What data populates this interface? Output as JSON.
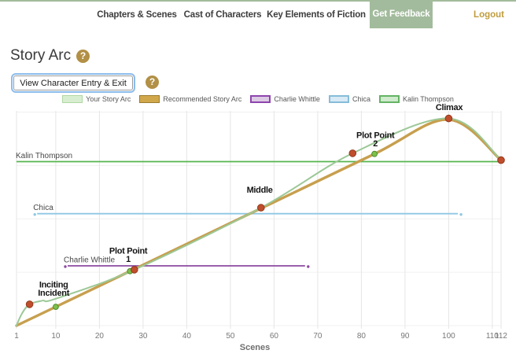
{
  "nav": {
    "items": [
      {
        "label": "Chapters & Scenes"
      },
      {
        "label": "Cast of Characters"
      },
      {
        "label": "Key Elements of Fiction"
      }
    ],
    "feedback_label": "Get Feedback",
    "logout_label": "Logout"
  },
  "page": {
    "title": "Story Arc",
    "help_glyph": "?",
    "view_button_label": "View Character Entry & Exit"
  },
  "colors": {
    "accent_green": "#a2bb9c",
    "logout_gold": "#bf9c3d",
    "help_gold": "#b29045",
    "grid": "#e6e6e6",
    "tick_text": "#777777",
    "annotation_text": "#141414"
  },
  "chart_data": {
    "type": "line",
    "title": "",
    "xlabel": "Scenes",
    "ylabel": "",
    "x_ticks": [
      1,
      10,
      20,
      30,
      40,
      50,
      60,
      70,
      80,
      90,
      100,
      110,
      112
    ],
    "x_range": [
      1,
      112
    ],
    "y_range": [
      0,
      100
    ],
    "grid": true,
    "legend_position": "top",
    "legend": [
      {
        "name": "Your Story Arc",
        "fill": "#d8eed0",
        "border": "#aed7a2",
        "bw": 1
      },
      {
        "name": "Recommended Story Arc",
        "fill": "#d0a74b",
        "border": "#9c7b2f",
        "bw": 1
      },
      {
        "name": "Charlie Whittle",
        "fill": "#dccae5",
        "border": "#8e44ad",
        "bw": 2
      },
      {
        "name": "Chica",
        "fill": "#d7eaf6",
        "border": "#86bcd9",
        "bw": 2
      },
      {
        "name": "Kalin Thompson",
        "fill": "#cfeacd",
        "border": "#64b364",
        "bw": 2
      }
    ],
    "series": [
      {
        "name": "Recommended Story Arc",
        "color": "#c79f4e",
        "width": 3.4,
        "points": [
          [
            1,
            0
          ],
          [
            10,
            8.8
          ],
          [
            27,
            25.5
          ],
          [
            57,
            54.9
          ],
          [
            83,
            80.4
          ],
          [
            100,
            96.5
          ],
          [
            112,
            77.5
          ]
        ],
        "markers": {
          "fill": "#7dc14b",
          "stroke": "#4c8c2b",
          "r": 3.4,
          "points": [
            [
              10,
              8.8
            ],
            [
              27,
              25.5
            ],
            [
              83,
              80.4
            ]
          ]
        }
      },
      {
        "name": "Your Story Arc",
        "color": "#9cc897",
        "width": 2,
        "points": [
          [
            1,
            0
          ],
          [
            2.2,
            5.5
          ],
          [
            4,
            10
          ],
          [
            7,
            11.7
          ],
          [
            10,
            12.6
          ],
          [
            28,
            26.2
          ],
          [
            57,
            55.2
          ],
          [
            78,
            80.7
          ],
          [
            100,
            97
          ],
          [
            112,
            77.5
          ]
        ],
        "markers": {
          "fill": "#c04e2c",
          "stroke": "#93371c",
          "r": 4.3,
          "points": [
            [
              4,
              10
            ],
            [
              28,
              26.2
            ],
            [
              57,
              55.2
            ],
            [
              78,
              80.7
            ],
            [
              100,
              97
            ],
            [
              112,
              77.5
            ]
          ]
        }
      }
    ],
    "character_lines": [
      {
        "name": "Kalin Thompson",
        "color": "#55b44e",
        "value": 76.8,
        "from": 1,
        "to": 112,
        "end_dots": false
      },
      {
        "name": "Chica",
        "color": "#8fc8e2",
        "value": 52.4,
        "from": 5,
        "to": 103,
        "end_dots": true
      },
      {
        "name": "Charlie Whittle",
        "color": "#8c4aa0",
        "value": 28,
        "from": 12,
        "to": 68,
        "end_dots": true
      }
    ],
    "annotations": [
      {
        "lines": [
          "Inciting",
          "Incident"
        ],
        "scene": 9.5,
        "value": 14
      },
      {
        "lines": [
          "Plot Point",
          "1"
        ],
        "scene": 26.6,
        "value": 29.8
      },
      {
        "lines": [
          "Middle"
        ],
        "scene": 56.7,
        "value": 62.2
      },
      {
        "lines": [
          "Plot Point",
          "2"
        ],
        "scene": 83.2,
        "value": 84
      },
      {
        "lines": [
          "Climax"
        ],
        "scene": 100.1,
        "value": 100.9
      }
    ]
  }
}
